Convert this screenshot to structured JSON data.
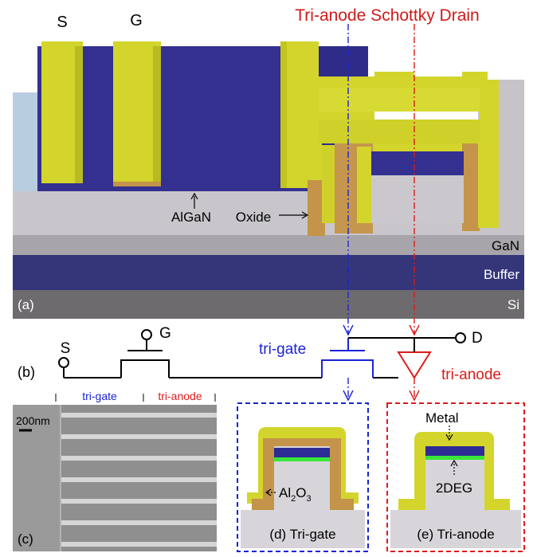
{
  "figure": {
    "title": "Tri-anode Schottky Drain",
    "panel_a": {
      "tag": "(a)",
      "s_label": "S",
      "g_label": "G",
      "algan_label": "AlGaN",
      "oxide_label": "Oxide",
      "gan_label": "GaN",
      "buffer_label": "Buffer",
      "si_label": "Si"
    },
    "panel_b": {
      "tag": "(b)",
      "s_label": "S",
      "g_label": "G",
      "d_label": "D",
      "trigate_label": "tri-gate",
      "trianode_label": "tri-anode"
    },
    "panel_c": {
      "tag": "(c)",
      "scale_label": "200nm",
      "trigate_label": "tri-gate",
      "trianode_label": "tri-anode"
    },
    "panel_d": {
      "al2o3_main": "Al",
      "al2o3_sub1": "2",
      "al2o3_o": "O",
      "al2o3_sub2": "3",
      "caption": "(d) Tri-gate"
    },
    "panel_e": {
      "metal_label": "Metal",
      "twodeg_label": "2DEG",
      "caption": "(e) Tri-anode"
    },
    "colors": {
      "metal": "#d8d92c",
      "algan": "#34328f",
      "oxide": "#c89a4a",
      "gan": "#c9c7cc",
      "buffer": "#33336f",
      "si": "#6e6b6e",
      "twodeg": "#39e639",
      "trigate_accent": "#1a24d6",
      "trianode_accent": "#dd1b1b"
    }
  }
}
